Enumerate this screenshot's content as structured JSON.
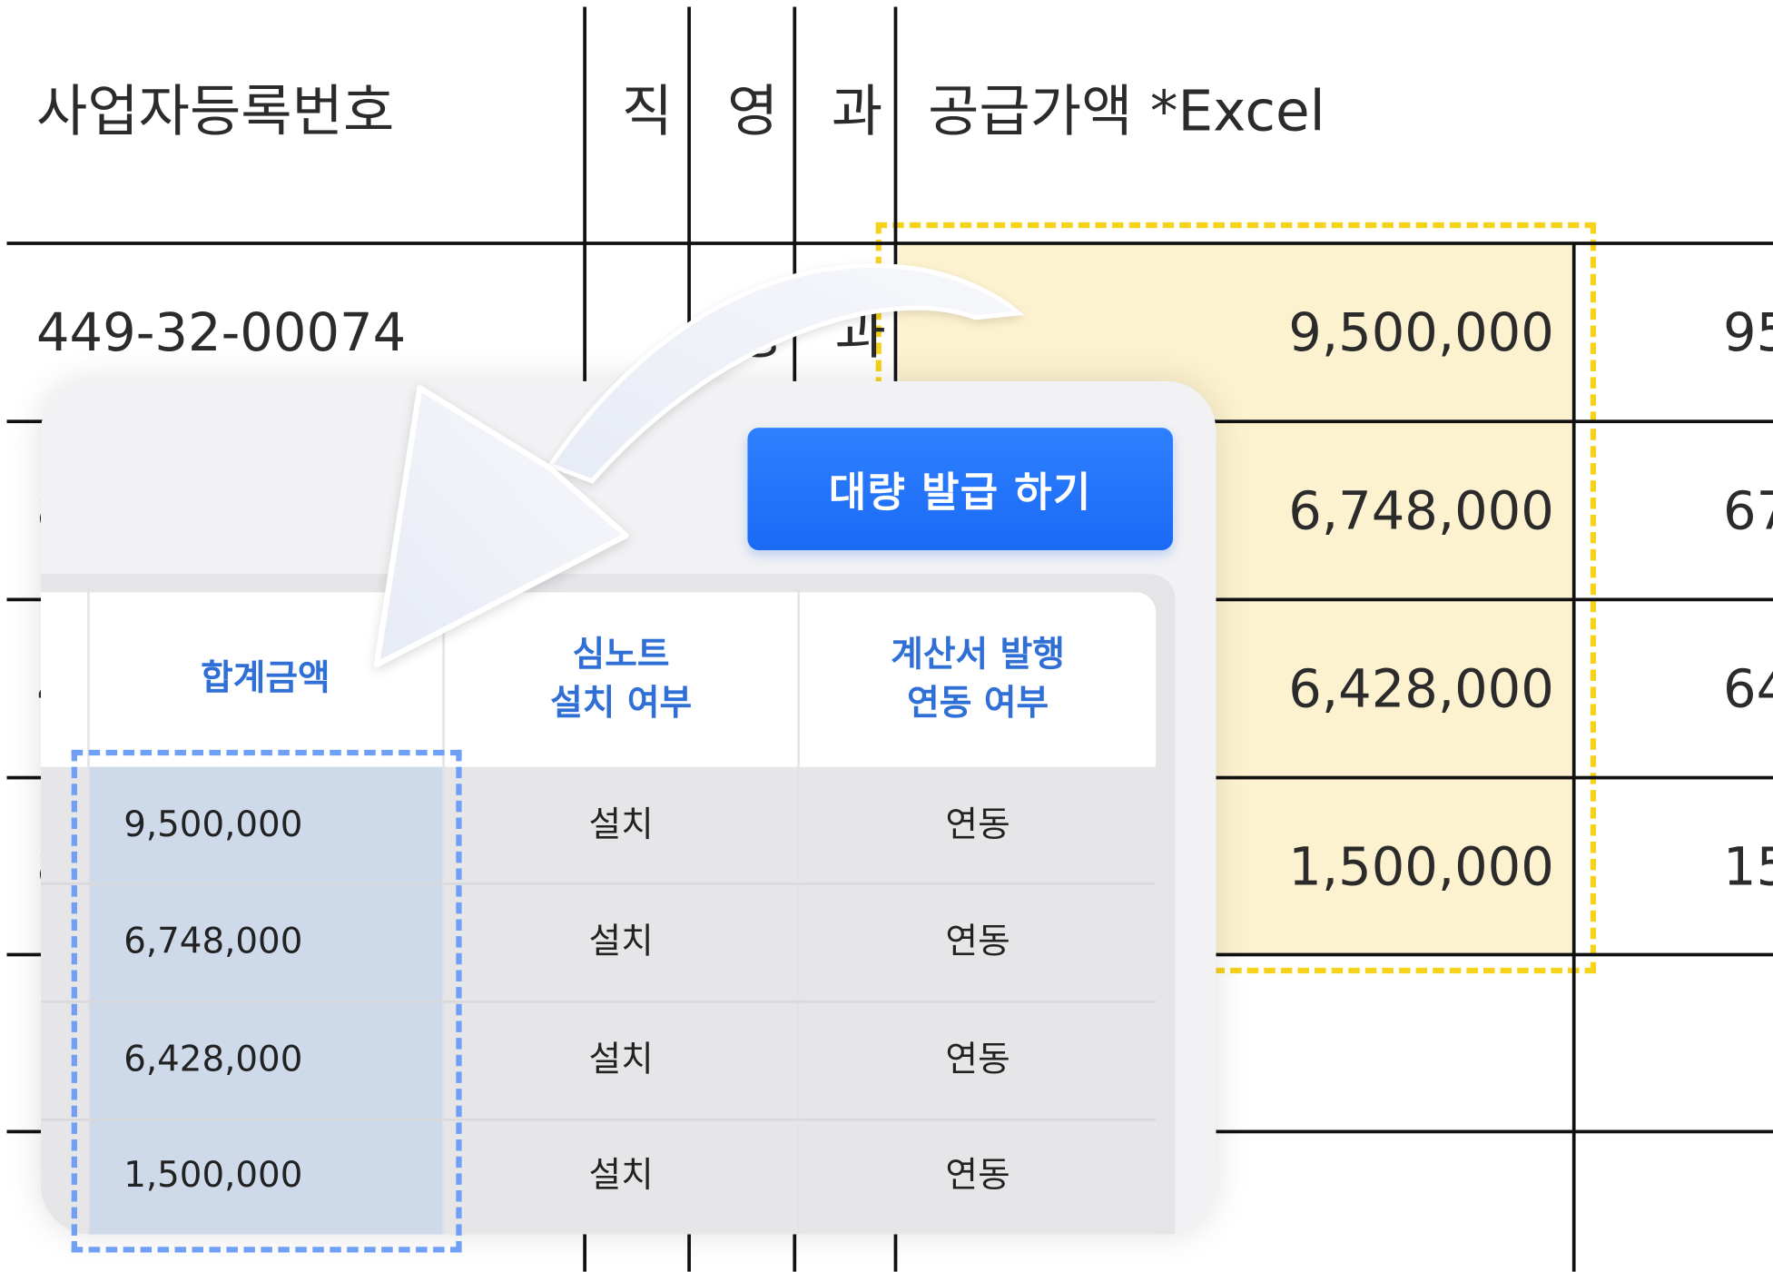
{
  "spreadsheet": {
    "headers": {
      "business_number": "사업자등록번호",
      "col_a": "직",
      "col_b": "영",
      "col_c": "과",
      "supply_amount": "공급가액 *Excel"
    },
    "rows": [
      {
        "business_number": "449-32-00074",
        "col_b": "성",
        "col_c": "과",
        "supply_amount": "9,500,000",
        "next_col_partial": "95"
      },
      {
        "business_number_partial": "8",
        "supply_amount": "6,748,000",
        "next_col_partial": "67"
      },
      {
        "business_number_partial": "4",
        "supply_amount": "6,428,000",
        "next_col_partial": "64"
      },
      {
        "business_number_partial": "8",
        "supply_amount": "1,500,000",
        "next_col_partial": "15"
      }
    ],
    "highlight_color": "#f6d21b"
  },
  "overlay": {
    "bulk_issue_button": "대량 발급 하기",
    "accent_color": "#1b6af6",
    "table": {
      "headers": {
        "total_amount": "합계금액",
        "simnote_installed": "심노트\n설치 여부",
        "invoice_linked": "계산서 발행\n연동 여부"
      },
      "rows": [
        {
          "total_amount": "9,500,000",
          "simnote_installed": "설치",
          "invoice_linked": "연동"
        },
        {
          "total_amount": "6,748,000",
          "simnote_installed": "설치",
          "invoice_linked": "연동"
        },
        {
          "total_amount": "6,428,000",
          "simnote_installed": "설치",
          "invoice_linked": "연동"
        },
        {
          "total_amount": "1,500,000",
          "simnote_installed": "설치",
          "invoice_linked": "연동"
        }
      ],
      "highlight_color": "#6fa0f5"
    }
  },
  "icons": {
    "copy_arrow": "curved-arrow-icon"
  }
}
